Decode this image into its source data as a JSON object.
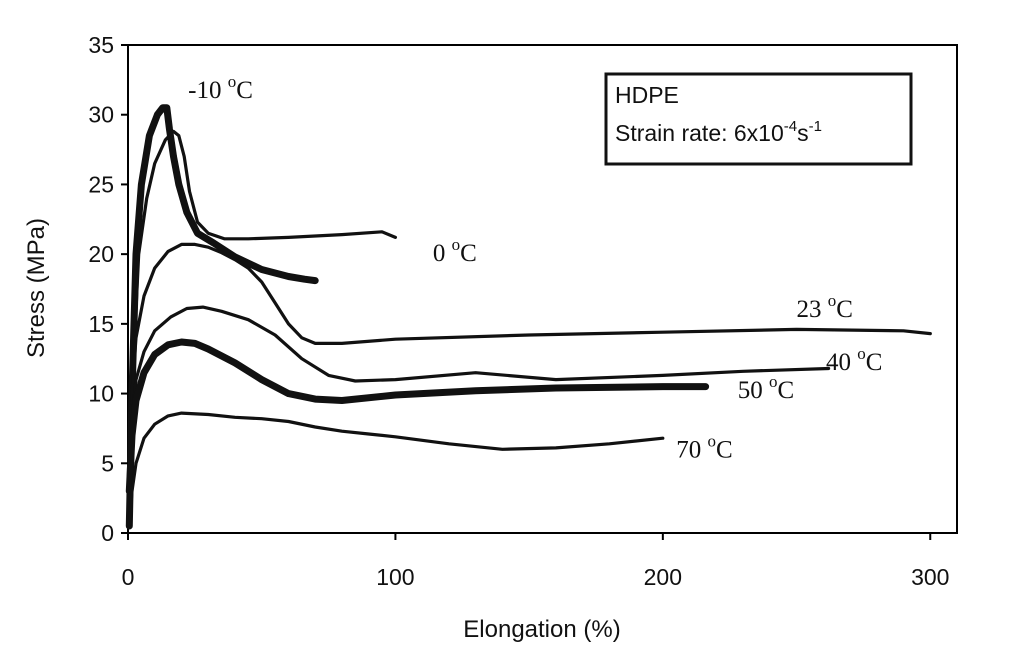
{
  "chart_data": {
    "type": "line",
    "title": "",
    "xlabel": "Elongation (%)",
    "ylabel": "Stress (MPa)",
    "xlim": [
      0,
      300
    ],
    "ylim": [
      0,
      35
    ],
    "grid": false,
    "xticks": [
      "0",
      "100",
      "200",
      "300"
    ],
    "yticks": [
      "0",
      "5",
      "10",
      "15",
      "20",
      "25",
      "30",
      "35"
    ],
    "annotation": {
      "material": "HDPE",
      "rate_prefix": "Strain rate: 6x10",
      "rate_exp1": "-4",
      "rate_mid": "s",
      "rate_exp2": "-1"
    },
    "series": [
      {
        "name": "-10 oC",
        "temp": "-10 ",
        "unit": "C",
        "degree_mark": "o",
        "weight": "heavy",
        "x": [
          0.5,
          1.5,
          3,
          5,
          8,
          11,
          13,
          14.5,
          15.5,
          17,
          19,
          22,
          26,
          32,
          40,
          50,
          60,
          66,
          70
        ],
        "y": [
          0.5,
          10,
          20,
          25,
          28.5,
          30,
          30.5,
          30.5,
          29,
          27,
          25,
          23,
          21.5,
          20.8,
          19.8,
          18.9,
          18.4,
          18.2,
          18.1
        ]
      },
      {
        "name": "0 oC",
        "temp": "0 ",
        "unit": "C",
        "degree_mark": "o",
        "weight": "thin",
        "x": [
          1,
          2,
          4,
          7,
          10,
          14,
          17,
          19,
          21,
          23,
          26,
          30,
          36,
          45,
          60,
          80,
          95,
          100
        ],
        "y": [
          3,
          12,
          20,
          24,
          26.5,
          28.2,
          28.8,
          28.5,
          27,
          24.5,
          22.3,
          21.5,
          21.1,
          21.1,
          21.2,
          21.4,
          21.6,
          21.2
        ]
      },
      {
        "name": "23 oC",
        "temp": "23 ",
        "unit": "C",
        "degree_mark": "o",
        "weight": "thin",
        "x": [
          0.5,
          1.5,
          3,
          6,
          10,
          15,
          20,
          25,
          30,
          35,
          40,
          45,
          50,
          55,
          60,
          65,
          70,
          80,
          100,
          150,
          200,
          250,
          290,
          300
        ],
        "y": [
          4,
          10,
          14,
          17,
          19,
          20.2,
          20.7,
          20.7,
          20.5,
          20.1,
          19.6,
          19,
          18,
          16.5,
          15,
          14,
          13.6,
          13.6,
          13.9,
          14.2,
          14.4,
          14.6,
          14.5,
          14.3
        ]
      },
      {
        "name": "40 oC",
        "temp": "40 ",
        "unit": "C",
        "degree_mark": "o",
        "weight": "thin",
        "x": [
          0.5,
          1.5,
          3,
          6,
          10,
          16,
          22,
          28,
          35,
          45,
          55,
          65,
          75,
          85,
          100,
          130,
          160,
          200,
          230,
          262
        ],
        "y": [
          4,
          8,
          11,
          13,
          14.5,
          15.5,
          16.1,
          16.2,
          15.9,
          15.3,
          14.2,
          12.5,
          11.3,
          10.9,
          11,
          11.5,
          11,
          11.3,
          11.6,
          11.8
        ]
      },
      {
        "name": "50 oC",
        "temp": "50 ",
        "unit": "C",
        "degree_mark": "o",
        "weight": "heavy",
        "x": [
          0.5,
          1.5,
          3,
          6,
          10,
          15,
          20,
          25,
          30,
          40,
          50,
          60,
          70,
          80,
          100,
          130,
          160,
          200,
          216
        ],
        "y": [
          3,
          7,
          9.5,
          11.5,
          12.8,
          13.5,
          13.7,
          13.6,
          13.2,
          12.2,
          11,
          10,
          9.6,
          9.5,
          9.9,
          10.2,
          10.4,
          10.5,
          10.5
        ]
      },
      {
        "name": "70 oC",
        "temp": "70 ",
        "unit": "C",
        "degree_mark": "o",
        "weight": "thin",
        "x": [
          0.5,
          1.5,
          3,
          6,
          10,
          15,
          20,
          30,
          40,
          50,
          60,
          70,
          80,
          90,
          100,
          120,
          140,
          160,
          180,
          200
        ],
        "y": [
          0.5,
          3,
          5,
          6.8,
          7.8,
          8.4,
          8.6,
          8.5,
          8.3,
          8.2,
          8,
          7.6,
          7.3,
          7.1,
          6.9,
          6.4,
          6,
          6.1,
          6.4,
          6.8
        ]
      }
    ]
  }
}
